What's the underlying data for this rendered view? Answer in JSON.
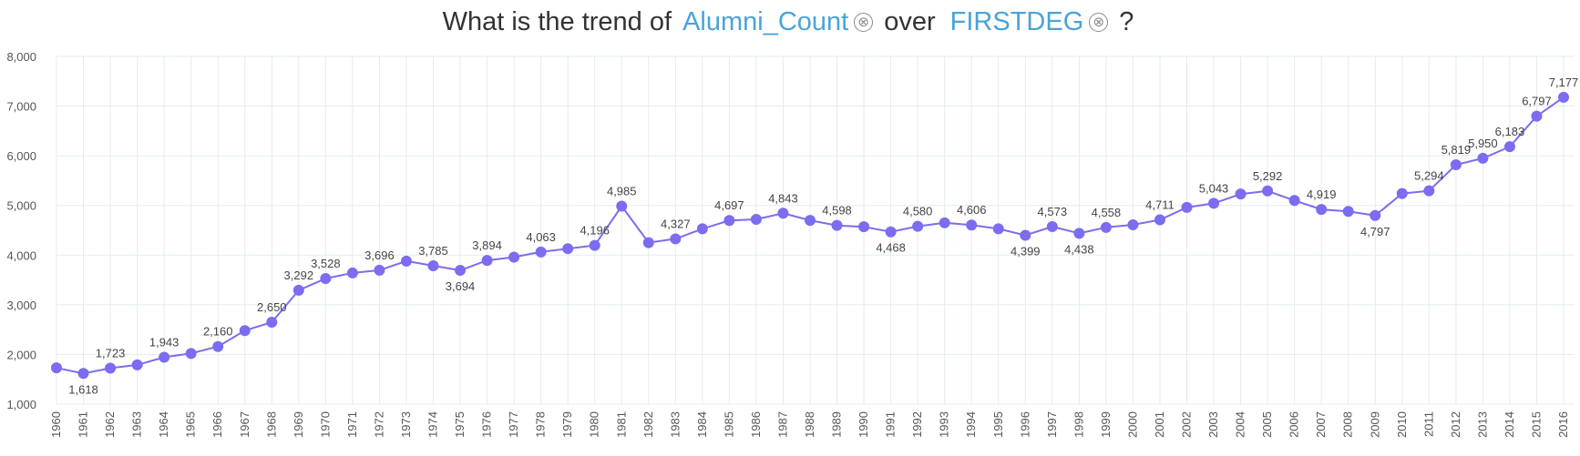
{
  "question": {
    "prefix": "What is the trend of",
    "measure": "Alumni_Count",
    "connector": "over",
    "dimension": "FIRSTDEG",
    "suffix": "?",
    "clear_glyph": "⊗"
  },
  "colors": {
    "line": "#7b6cf0",
    "pill": "#4aa3d8",
    "grid": "#e3ecef",
    "text": "#333333"
  },
  "chart_data": {
    "type": "line",
    "title": "",
    "xlabel": "",
    "ylabel": "",
    "ylim": [
      1000,
      8000
    ],
    "yticks": [
      1000,
      2000,
      3000,
      4000,
      5000,
      6000,
      7000,
      8000
    ],
    "grid": true,
    "x": [
      "1960",
      "1961",
      "1962",
      "1963",
      "1964",
      "1965",
      "1966",
      "1967",
      "1968",
      "1969",
      "1970",
      "1971",
      "1972",
      "1973",
      "1974",
      "1975",
      "1976",
      "1977",
      "1978",
      "1979",
      "1980",
      "1981",
      "1982",
      "1983",
      "1984",
      "1985",
      "1986",
      "1987",
      "1988",
      "1989",
      "1990",
      "1991",
      "1992",
      "1993",
      "1994",
      "1995",
      "1996",
      "1997",
      "1998",
      "1999",
      "2000",
      "2001",
      "2002",
      "2003",
      "2004",
      "2005",
      "2006",
      "2007",
      "2008",
      "2009",
      "2010",
      "2011",
      "2012",
      "2013",
      "2014",
      "2015",
      "2016"
    ],
    "series": [
      {
        "values": [
          1730,
          1618,
          1723,
          1790,
          1943,
          2020,
          2160,
          2480,
          2650,
          3292,
          3528,
          3640,
          3696,
          3880,
          3785,
          3694,
          3894,
          3960,
          4063,
          4130,
          4196,
          4985,
          4250,
          4327,
          4530,
          4697,
          4720,
          4843,
          4700,
          4598,
          4570,
          4468,
          4580,
          4650,
          4606,
          4530,
          4399,
          4573,
          4438,
          4558,
          4610,
          4711,
          4960,
          5043,
          5230,
          5292,
          5100,
          4919,
          4880,
          4797,
          5240,
          5294,
          5819,
          5950,
          6183,
          6797,
          7177
        ]
      }
    ],
    "data_labels": [
      {
        "x": "1961",
        "text": "1,618"
      },
      {
        "x": "1962",
        "text": "1,723"
      },
      {
        "x": "1964",
        "text": "1,943"
      },
      {
        "x": "1966",
        "text": "2,160"
      },
      {
        "x": "1968",
        "text": "2,650"
      },
      {
        "x": "1969",
        "text": "3,292"
      },
      {
        "x": "1970",
        "text": "3,528"
      },
      {
        "x": "1972",
        "text": "3,696"
      },
      {
        "x": "1974",
        "text": "3,785"
      },
      {
        "x": "1975",
        "text": "3,694"
      },
      {
        "x": "1976",
        "text": "3,894"
      },
      {
        "x": "1978",
        "text": "4,063"
      },
      {
        "x": "1980",
        "text": "4,196"
      },
      {
        "x": "1981",
        "text": "4,985"
      },
      {
        "x": "1983",
        "text": "4,327"
      },
      {
        "x": "1985",
        "text": "4,697"
      },
      {
        "x": "1987",
        "text": "4,843"
      },
      {
        "x": "1989",
        "text": "4,598"
      },
      {
        "x": "1991",
        "text": "4,468"
      },
      {
        "x": "1992",
        "text": "4,580"
      },
      {
        "x": "1994",
        "text": "4,606"
      },
      {
        "x": "1996",
        "text": "4,399"
      },
      {
        "x": "1997",
        "text": "4,573"
      },
      {
        "x": "1998",
        "text": "4,438"
      },
      {
        "x": "1999",
        "text": "4,558"
      },
      {
        "x": "2001",
        "text": "4,711"
      },
      {
        "x": "2003",
        "text": "5,043"
      },
      {
        "x": "2005",
        "text": "5,292"
      },
      {
        "x": "2007",
        "text": "4,919"
      },
      {
        "x": "2009",
        "text": "4,797"
      },
      {
        "x": "2011",
        "text": "5,294"
      },
      {
        "x": "2012",
        "text": "5,819"
      },
      {
        "x": "2013",
        "text": "5,950"
      },
      {
        "x": "2014",
        "text": "6,183"
      },
      {
        "x": "2015",
        "text": "6,797"
      },
      {
        "x": "2016",
        "text": "7,177"
      }
    ]
  }
}
